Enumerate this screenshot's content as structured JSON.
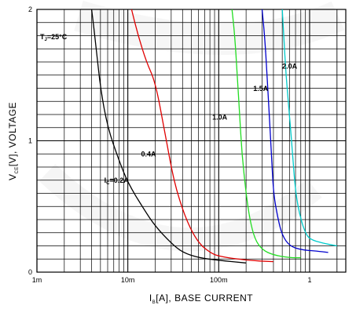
{
  "chart_data": {
    "type": "line",
    "x_scale": "log",
    "xlim": [
      0.001,
      2.5
    ],
    "ylim": [
      0,
      2
    ],
    "grid": true,
    "x_ticks": [
      "1m",
      "10m",
      "100m",
      "1"
    ],
    "y_ticks": [
      "0",
      "1",
      "2"
    ],
    "xlabel": {
      "main": "I",
      "sub": "B",
      "rest": "[A], BASE CURRENT"
    },
    "ylabel": {
      "main": "V",
      "sub": "CE",
      "rest": "[V], VOLTAGE"
    },
    "condition": {
      "main": "T",
      "sub": "J",
      "rest": "=25°C"
    },
    "series": [
      {
        "name": "I_C=0.2A",
        "label_main": "I",
        "label_sub": "C",
        "label_rest": "=0.2A",
        "color": "#000000",
        "points": [
          [
            0.004,
            2.0
          ],
          [
            0.0045,
            1.7
          ],
          [
            0.005,
            1.4
          ],
          [
            0.006,
            1.1
          ],
          [
            0.008,
            0.85
          ],
          [
            0.01,
            0.68
          ],
          [
            0.015,
            0.48
          ],
          [
            0.02,
            0.35
          ],
          [
            0.03,
            0.22
          ],
          [
            0.04,
            0.15
          ],
          [
            0.06,
            0.11
          ],
          [
            0.1,
            0.09
          ],
          [
            0.2,
            0.07
          ]
        ]
      },
      {
        "name": "0.4A",
        "label_main": "0.4A",
        "color": "#e00000",
        "points": [
          [
            0.011,
            2.0
          ],
          [
            0.013,
            1.8
          ],
          [
            0.016,
            1.6
          ],
          [
            0.02,
            1.45
          ],
          [
            0.025,
            1.1
          ],
          [
            0.03,
            0.8
          ],
          [
            0.035,
            0.6
          ],
          [
            0.045,
            0.38
          ],
          [
            0.06,
            0.22
          ],
          [
            0.08,
            0.15
          ],
          [
            0.1,
            0.12
          ],
          [
            0.2,
            0.09
          ],
          [
            0.4,
            0.08
          ]
        ]
      },
      {
        "name": "1.0A",
        "label_main": "1.0A",
        "color": "#22dd22",
        "points": [
          [
            0.14,
            2.0
          ],
          [
            0.15,
            1.8
          ],
          [
            0.16,
            1.5
          ],
          [
            0.17,
            1.2
          ],
          [
            0.18,
            0.9
          ],
          [
            0.2,
            0.6
          ],
          [
            0.22,
            0.4
          ],
          [
            0.25,
            0.25
          ],
          [
            0.3,
            0.17
          ],
          [
            0.4,
            0.13
          ],
          [
            0.6,
            0.11
          ],
          [
            0.8,
            0.11
          ]
        ]
      },
      {
        "name": "1.5A",
        "label_main": "1.5A",
        "color": "#0000cc",
        "points": [
          [
            0.3,
            2.0
          ],
          [
            0.32,
            1.8
          ],
          [
            0.34,
            1.5
          ],
          [
            0.36,
            1.2
          ],
          [
            0.38,
            0.9
          ],
          [
            0.4,
            0.6
          ],
          [
            0.45,
            0.4
          ],
          [
            0.5,
            0.28
          ],
          [
            0.6,
            0.2
          ],
          [
            0.8,
            0.17
          ],
          [
            1.2,
            0.16
          ],
          [
            1.6,
            0.15
          ]
        ]
      },
      {
        "name": "2.0A",
        "label_main": "2.0A",
        "color": "#00cccc",
        "points": [
          [
            0.5,
            2.0
          ],
          [
            0.52,
            1.8
          ],
          [
            0.55,
            1.5
          ],
          [
            0.6,
            1.2
          ],
          [
            0.65,
            0.9
          ],
          [
            0.7,
            0.6
          ],
          [
            0.8,
            0.4
          ],
          [
            0.9,
            0.3
          ],
          [
            1.0,
            0.25
          ],
          [
            1.4,
            0.22
          ],
          [
            2.0,
            0.2
          ]
        ]
      }
    ]
  }
}
